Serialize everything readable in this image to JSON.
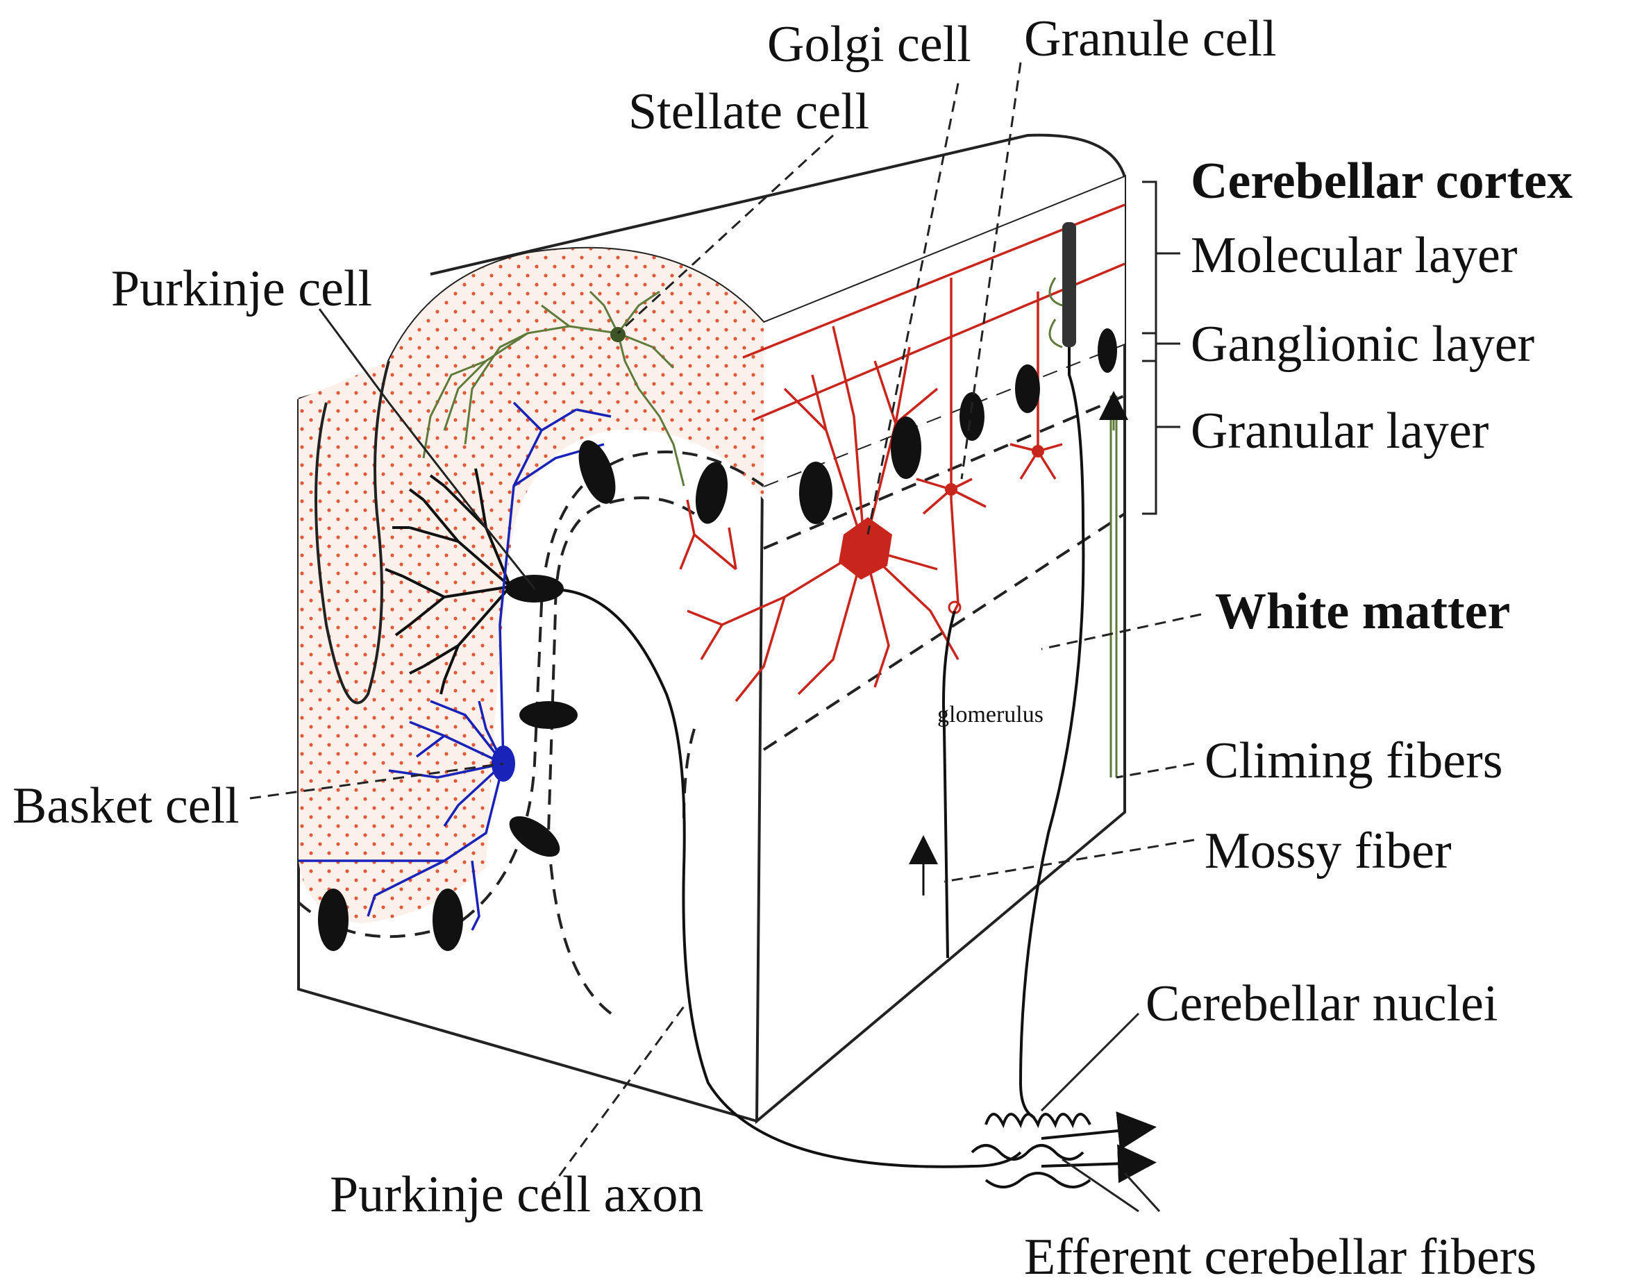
{
  "labels": {
    "golgi_cell": "Golgi cell",
    "granule_cell": "Granule cell",
    "stellate_cell": "Stellate cell",
    "cerebellar_cortex": "Cerebellar cortex",
    "molecular_layer": "Molecular layer",
    "ganglionic_layer": "Ganglionic layer",
    "granular_layer": "Granular layer",
    "purkinje_cell": "Purkinje cell",
    "white_matter": "White matter",
    "glomerulus": "glomerulus",
    "basket_cell": "Basket cell",
    "climbing_fibers": "Climing fibers",
    "mossy_fiber": "Mossy fiber",
    "cerebellar_nuclei": "Cerebellar nuclei",
    "purkinje_cell_axon": "Purkinje cell axon",
    "efferent_fibers": "Efferent cerebellar fibers"
  },
  "colors": {
    "purkinje_cell": "#111111",
    "basket_cell": "#1a23b8",
    "stellate_cell": "#5f7a3a",
    "golgi_and_granule_cells": "#c8261c",
    "molecular_dots": "#e05a3a",
    "molecular_fill": "#fbf1ea"
  }
}
